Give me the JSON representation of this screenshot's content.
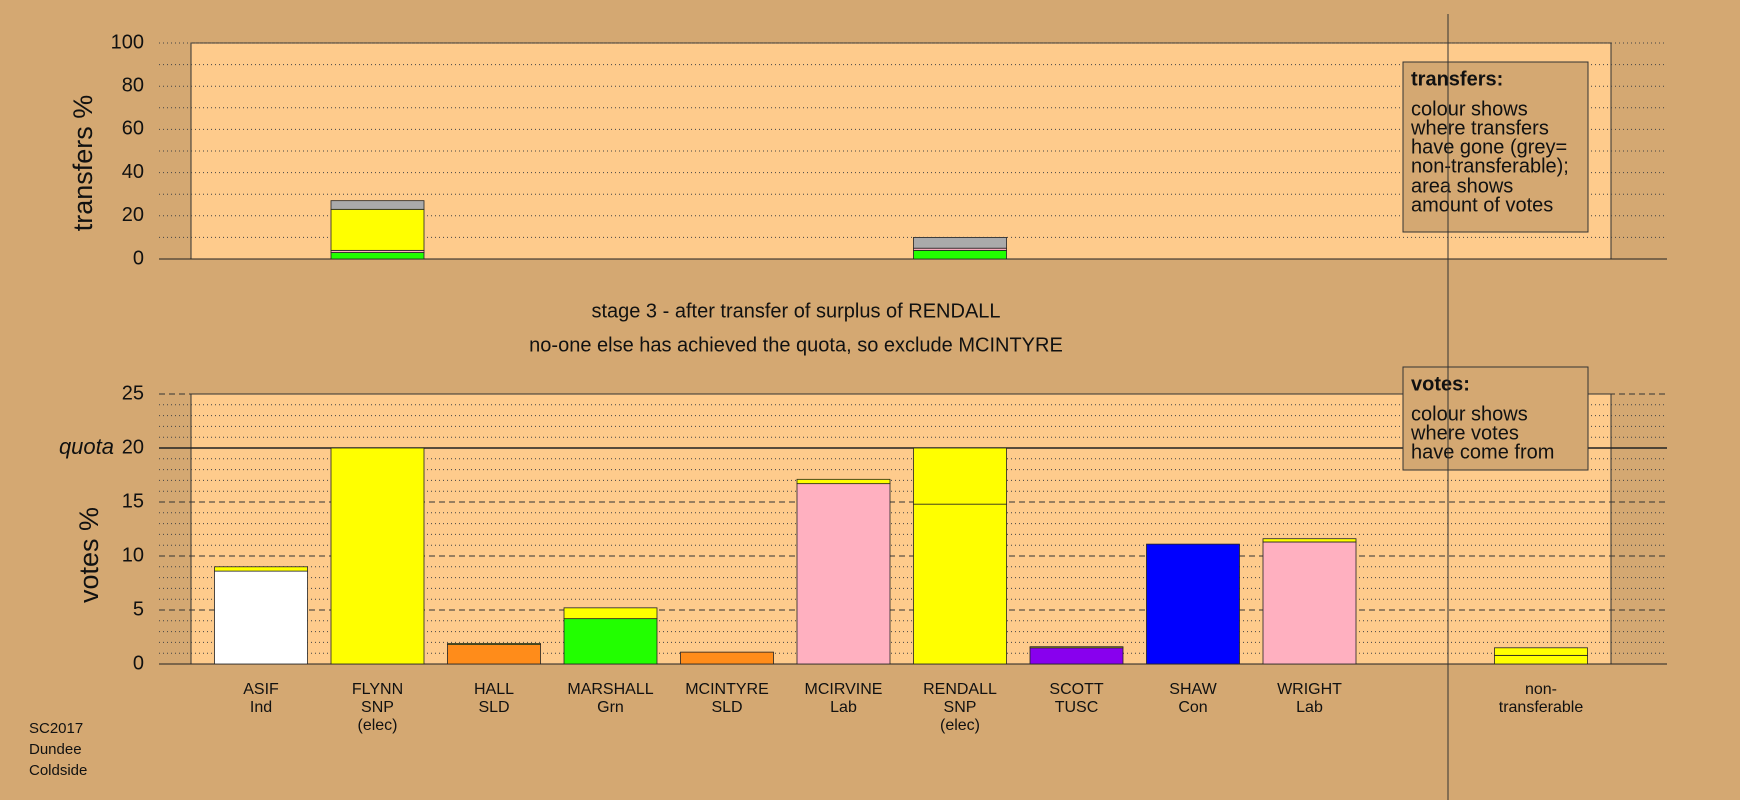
{
  "chart_data": [
    {
      "type": "bar",
      "stacked": true,
      "ylabel": "transfers %",
      "ylim": [
        0,
        100
      ],
      "yticks": [
        0,
        20,
        40,
        60,
        80,
        100
      ],
      "minor_yticks": [
        10,
        30,
        50,
        70,
        90
      ],
      "grid": "dotted",
      "series": [
        {
          "color": "#22ff00",
          "values": [
            null,
            3,
            null,
            null,
            null,
            null,
            4,
            null,
            null,
            null,
            null
          ]
        },
        {
          "color": "#ffb0c0",
          "values": [
            null,
            1,
            null,
            null,
            null,
            null,
            1,
            null,
            null,
            null,
            null
          ]
        },
        {
          "color": "#ffff00",
          "values": [
            null,
            19,
            null,
            null,
            null,
            null,
            null,
            null,
            null,
            null,
            null
          ]
        },
        {
          "color": "#aaaaaa",
          "values": [
            null,
            4,
            null,
            null,
            null,
            null,
            5,
            null,
            null,
            null,
            null
          ]
        }
      ],
      "note": {
        "title": "transfers:",
        "paragraphs": [
          [
            "colour shows",
            "where transfers",
            "have gone (grey=",
            "non-transferable);"
          ],
          [
            "area shows",
            "amount of votes"
          ]
        ]
      }
    },
    {
      "type": "bar",
      "stacked": true,
      "ylabel": "votes %",
      "ylim": [
        0,
        25
      ],
      "yticks": [
        0,
        5,
        10,
        15,
        20,
        25
      ],
      "minor_yticks": [
        1,
        2,
        3,
        4,
        6,
        7,
        8,
        9,
        11,
        12,
        13,
        14,
        16,
        17,
        18,
        19,
        21,
        22,
        23,
        24
      ],
      "grid": "dashed",
      "quota": 20,
      "quota_label": "quota",
      "categories": [
        [
          "ASIF",
          "Ind"
        ],
        [
          "FLYNN",
          "SNP",
          "(elec)"
        ],
        [
          "HALL",
          "SLD"
        ],
        [
          "MARSHALL",
          "Grn"
        ],
        [
          "MCINTYRE",
          "SLD"
        ],
        [
          "MCIRVINE",
          "Lab"
        ],
        [
          "RENDALL",
          "SNP",
          "(elec)"
        ],
        [
          "SCOTT",
          "TUSC"
        ],
        [
          "SHAW",
          "Con"
        ],
        [
          "WRIGHT",
          "Lab"
        ],
        [
          "non-",
          "transferable"
        ]
      ],
      "series": [
        {
          "colors": [
            "#ffffff",
            "#ffff00",
            "#ff8c1a",
            "#22ff00",
            "#ff8c1a",
            "#ffb0c0",
            "#ffff00",
            "#8800ee",
            "#0000ff",
            "#ffb0c0",
            "#ffff00"
          ],
          "values": [
            8.6,
            20,
            1.8,
            4.2,
            1.1,
            16.7,
            14.8,
            1.5,
            11.1,
            11.3,
            0.8
          ]
        },
        {
          "color": "#ffff00",
          "values": [
            0.4,
            null,
            0.1,
            1.0,
            null,
            0.4,
            5.2,
            0.1,
            null,
            0.3,
            0.7
          ]
        }
      ],
      "note": {
        "title": "votes:",
        "paragraphs": [
          [
            "colour shows",
            "where votes",
            "have come from"
          ]
        ]
      }
    }
  ],
  "stage_text": [
    "stage 3 - after transfer of surplus of RENDALL",
    "no-one else has achieved the quota, so exclude MCINTYRE"
  ],
  "footer": [
    "SC2017",
    "Dundee",
    "Coldside"
  ]
}
